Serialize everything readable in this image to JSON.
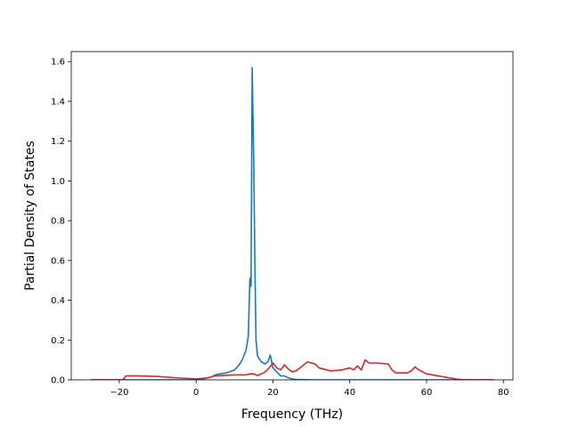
{
  "chart_data": {
    "type": "line",
    "title": "",
    "xlabel": "Frequency (THz)",
    "ylabel": "Partial Density of States",
    "xlim": [
      -32.5,
      82.5
    ],
    "ylim": [
      0,
      1.65
    ],
    "xticks": [
      -20,
      0,
      20,
      40,
      60,
      80
    ],
    "yticks": [
      0.0,
      0.2,
      0.4,
      0.6,
      0.8,
      1.0,
      1.2,
      1.4,
      1.6
    ],
    "xtick_labels": [
      "−20",
      "0",
      "20",
      "40",
      "60",
      "80"
    ],
    "ytick_labels": [
      "0.0",
      "0.2",
      "0.4",
      "0.6",
      "0.8",
      "1.0",
      "1.2",
      "1.4",
      "1.6"
    ],
    "grid": false,
    "legend": "none",
    "series": [
      {
        "color": "#1f77b4",
        "points": [
          [
            -27.5,
            0.0
          ],
          [
            -20,
            0.0
          ],
          [
            -10,
            0.0
          ],
          [
            0,
            0.0
          ],
          [
            2,
            0.005
          ],
          [
            4,
            0.015
          ],
          [
            5,
            0.025
          ],
          [
            6,
            0.03
          ],
          [
            8,
            0.035
          ],
          [
            10,
            0.05
          ],
          [
            11,
            0.07
          ],
          [
            12,
            0.1
          ],
          [
            13,
            0.15
          ],
          [
            13.6,
            0.22
          ],
          [
            14.0,
            0.51
          ],
          [
            14.3,
            0.47
          ],
          [
            14.6,
            1.57
          ],
          [
            15.0,
            1.1
          ],
          [
            15.3,
            0.6
          ],
          [
            15.6,
            0.2
          ],
          [
            16,
            0.12
          ],
          [
            17,
            0.09
          ],
          [
            18,
            0.08
          ],
          [
            18.7,
            0.09
          ],
          [
            19.3,
            0.125
          ],
          [
            20,
            0.06
          ],
          [
            21,
            0.04
          ],
          [
            22,
            0.02
          ],
          [
            23,
            0.02
          ],
          [
            24,
            0.01
          ],
          [
            25,
            0.005
          ],
          [
            26,
            0.002
          ],
          [
            30,
            0.0
          ],
          [
            40,
            0.0
          ],
          [
            50,
            0.0
          ],
          [
            60,
            0.0
          ],
          [
            70,
            0.0
          ],
          [
            77.5,
            0.0
          ]
        ]
      },
      {
        "color": "#d62728",
        "points": [
          [
            -27.5,
            0.0
          ],
          [
            -19,
            0.0
          ],
          [
            -18.3,
            0.02
          ],
          [
            -15,
            0.02
          ],
          [
            -10,
            0.017
          ],
          [
            -5,
            0.01
          ],
          [
            0,
            0.005
          ],
          [
            3,
            0.01
          ],
          [
            5,
            0.02
          ],
          [
            10,
            0.025
          ],
          [
            13,
            0.025
          ],
          [
            14,
            0.03
          ],
          [
            15,
            0.03
          ],
          [
            16,
            0.022
          ],
          [
            17,
            0.03
          ],
          [
            18,
            0.04
          ],
          [
            19,
            0.06
          ],
          [
            20,
            0.085
          ],
          [
            21,
            0.06
          ],
          [
            22,
            0.05
          ],
          [
            23,
            0.075
          ],
          [
            24,
            0.055
          ],
          [
            25,
            0.04
          ],
          [
            26,
            0.045
          ],
          [
            27,
            0.06
          ],
          [
            28,
            0.075
          ],
          [
            29,
            0.09
          ],
          [
            30,
            0.085
          ],
          [
            31,
            0.08
          ],
          [
            32,
            0.06
          ],
          [
            35,
            0.045
          ],
          [
            38,
            0.05
          ],
          [
            40,
            0.06
          ],
          [
            41,
            0.05
          ],
          [
            42,
            0.07
          ],
          [
            43,
            0.05
          ],
          [
            44,
            0.1
          ],
          [
            45,
            0.085
          ],
          [
            47,
            0.085
          ],
          [
            50,
            0.08
          ],
          [
            51,
            0.05
          ],
          [
            52,
            0.035
          ],
          [
            55,
            0.035
          ],
          [
            56,
            0.045
          ],
          [
            57,
            0.065
          ],
          [
            58,
            0.05
          ],
          [
            60,
            0.03
          ],
          [
            63,
            0.02
          ],
          [
            66,
            0.01
          ],
          [
            68,
            0.003
          ],
          [
            70,
            0.0
          ],
          [
            77.5,
            0.0
          ]
        ]
      }
    ]
  }
}
